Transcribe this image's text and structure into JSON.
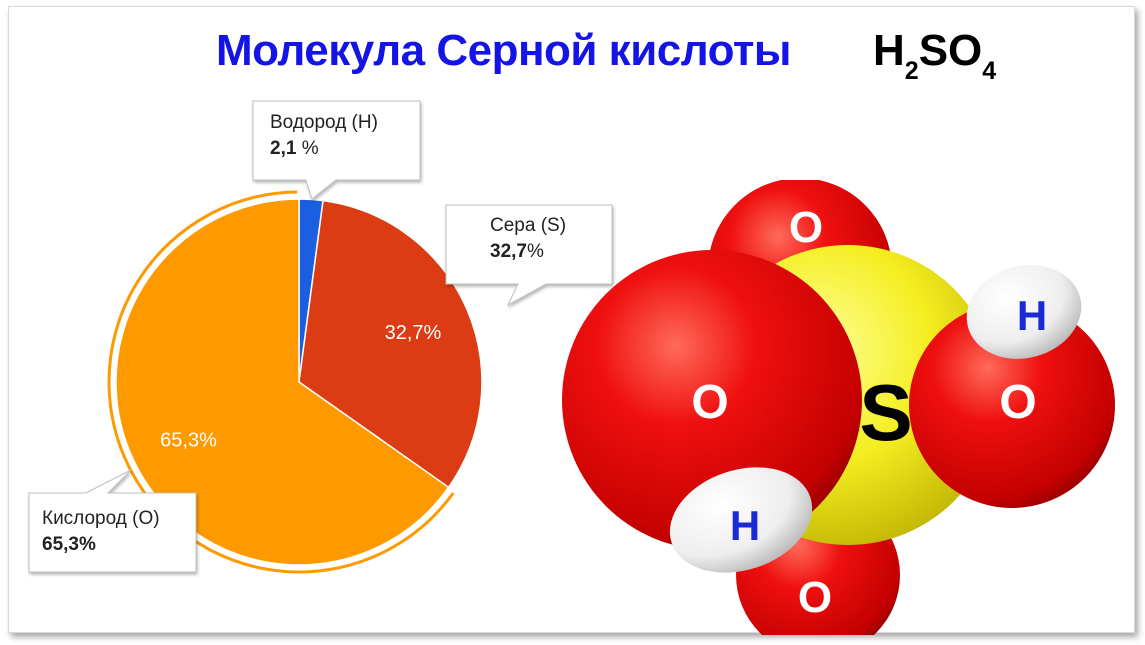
{
  "title": "Молекула Серной кислоты",
  "formula": {
    "h": "H",
    "h_sub": "2",
    "so": "SO",
    "o_sub": "4"
  },
  "chart_data": {
    "type": "pie",
    "title": "Молекула Серной кислоты H2SO4",
    "slices": [
      {
        "name": "Водород (H)",
        "value": 2.1,
        "label": "2,1",
        "unit": " %",
        "color": "#1a5fe0"
      },
      {
        "name": "Сера (S)",
        "value": 32.7,
        "label": "32,7",
        "unit": "%",
        "color": "#dc3c14"
      },
      {
        "name": "Кислород (O)",
        "value": 65.3,
        "label": "65,3",
        "unit": "%",
        "color": "#ff9900"
      }
    ],
    "data_labels": [
      "32,7%",
      "65,3%"
    ]
  },
  "molecule": {
    "atoms": [
      "O",
      "O",
      "S",
      "O",
      "H",
      "O",
      "H"
    ],
    "colors": {
      "oxygen": "#e00000",
      "sulfur": "#f5f000",
      "hydrogen": "#f0f0f0",
      "oxygen_text": "#ffffff",
      "hydrogen_text": "#1a2ad6",
      "sulfur_text": "#000000"
    }
  }
}
